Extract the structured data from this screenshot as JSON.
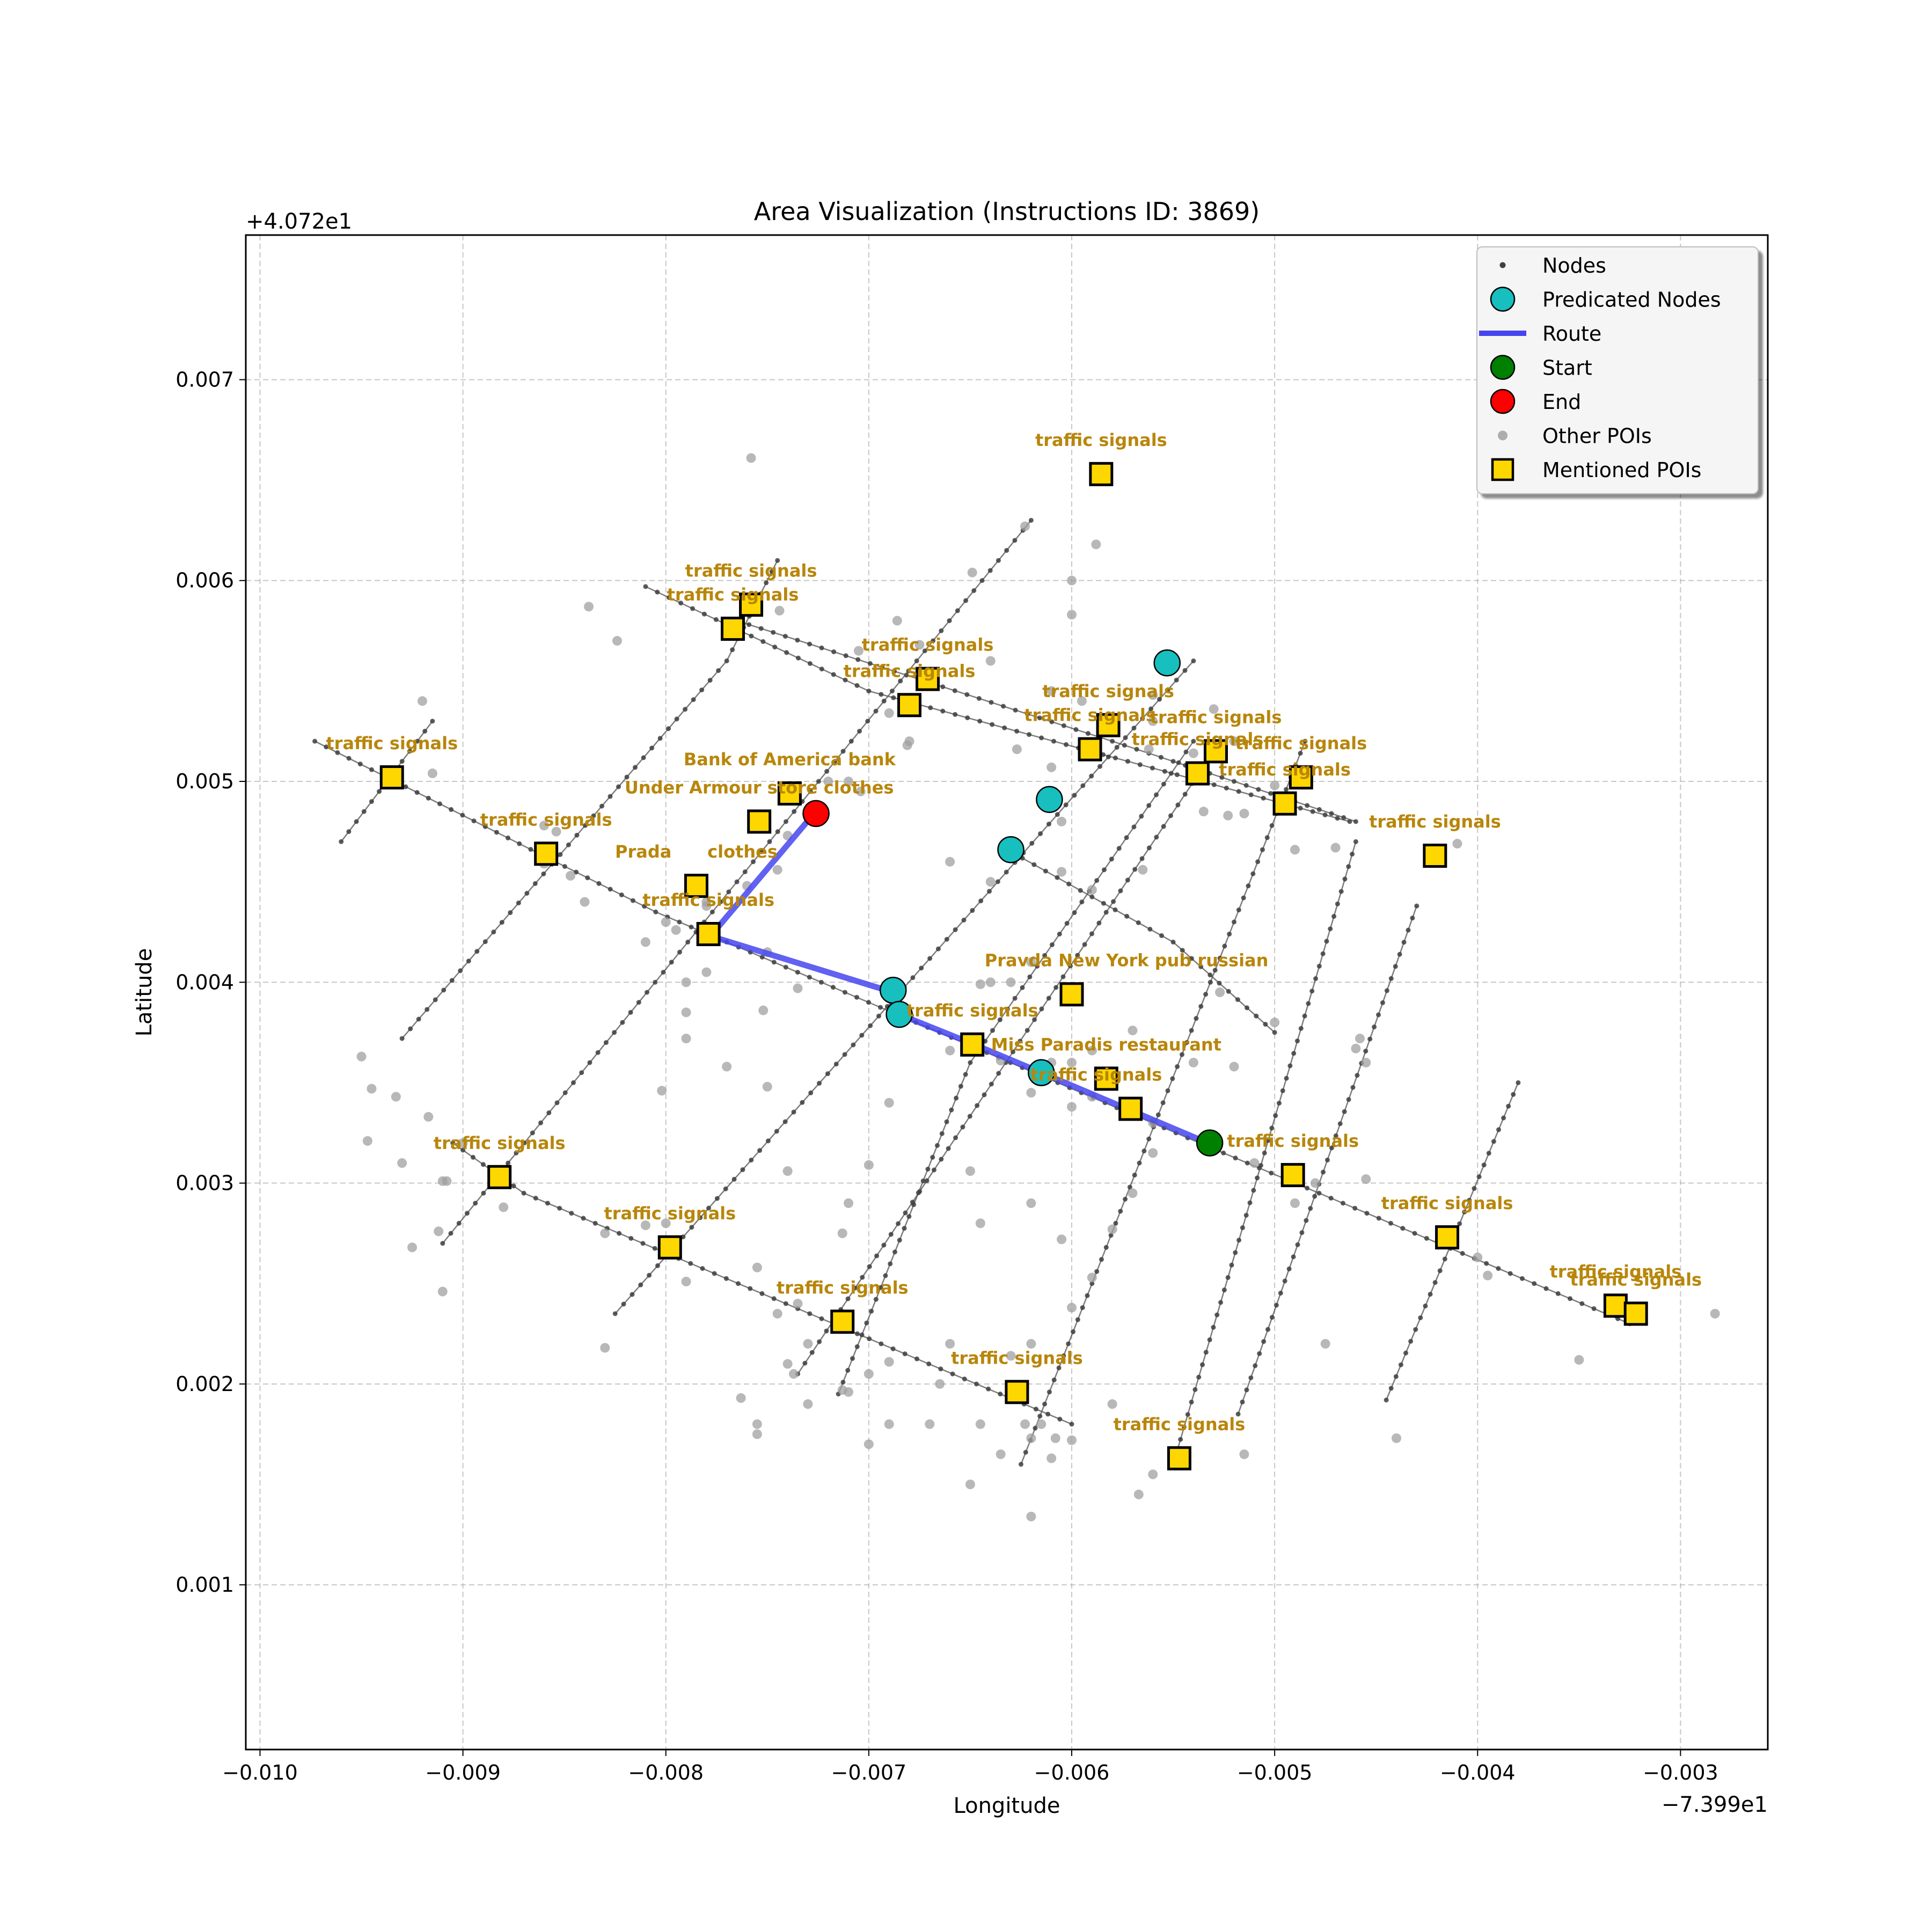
{
  "chart_data": {
    "type": "scatter",
    "title": "Area Visualization (Instructions ID: 3869)",
    "xlabel": "Longitude",
    "ylabel": "Latitude",
    "x_offset_label": "−7.399e1",
    "y_offset_label": "+4.072e1",
    "xlim": [
      -0.01007,
      -0.00257
    ],
    "ylim": [
      0.00018,
      0.00772
    ],
    "grid": true,
    "x_ticks": [
      {
        "v": -0.01,
        "label": "−0.010"
      },
      {
        "v": -0.009,
        "label": "−0.009"
      },
      {
        "v": -0.008,
        "label": "−0.008"
      },
      {
        "v": -0.007,
        "label": "−0.007"
      },
      {
        "v": -0.006,
        "label": "−0.006"
      },
      {
        "v": -0.005,
        "label": "−0.005"
      },
      {
        "v": -0.004,
        "label": "−0.004"
      },
      {
        "v": -0.003,
        "label": "−0.003"
      }
    ],
    "y_ticks": [
      {
        "v": 0.001,
        "label": "0.001"
      },
      {
        "v": 0.002,
        "label": "0.002"
      },
      {
        "v": 0.003,
        "label": "0.003"
      },
      {
        "v": 0.004,
        "label": "0.004"
      },
      {
        "v": 0.005,
        "label": "0.005"
      },
      {
        "v": 0.006,
        "label": "0.006"
      },
      {
        "v": 0.007,
        "label": "0.007"
      }
    ],
    "legend": {
      "position": "top-right",
      "entries": [
        {
          "label": "Nodes",
          "marker": "small-dot",
          "color": "#404040"
        },
        {
          "label": "Predicated Nodes",
          "marker": "circle",
          "color": "#17bfbf"
        },
        {
          "label": "Route",
          "marker": "line",
          "color": "#4545f0"
        },
        {
          "label": "Start",
          "marker": "circle",
          "color": "#008000"
        },
        {
          "label": "End",
          "marker": "circle",
          "color": "#ff0000"
        },
        {
          "label": "Other POIs",
          "marker": "gray-dot",
          "color": "#a0a0a0"
        },
        {
          "label": "Mentioned POIs",
          "marker": "square",
          "color": "#ffd700"
        }
      ]
    },
    "colors": {
      "node": "#404040",
      "edge": "#505050",
      "predicated": "#17bfbf",
      "route": "#4545f0",
      "start": "#008000",
      "end": "#ff0000",
      "other_poi": "#a0a0a0",
      "mentioned_poi": "#ffd700",
      "poi_label": "#b8860b"
    },
    "streets": [
      [
        [
          -0.00973,
          0.0052
        ],
        [
          -0.00805,
          0.00435
        ],
        [
          -0.0077,
          0.0042
        ],
        [
          -0.00537,
          0.0032
        ],
        [
          -0.00325,
          0.0023
        ]
      ],
      [
        [
          -0.0081,
          0.00597
        ],
        [
          -0.007,
          0.00545
        ],
        [
          -0.00463,
          0.0048
        ]
      ],
      [
        [
          -0.00765,
          0.0058
        ],
        [
          -0.0058,
          0.0052
        ],
        [
          -0.0046,
          0.0048
        ]
      ],
      [
        [
          -0.00905,
          0.0032
        ],
        [
          -0.0087,
          0.00295
        ],
        [
          -0.006,
          0.0018
        ]
      ],
      [
        [
          -0.0063,
          0.00465
        ],
        [
          -0.0055,
          0.0042
        ],
        [
          -0.005,
          0.00375
        ]
      ],
      [
        [
          -0.0096,
          0.0047
        ],
        [
          -0.00915,
          0.0053
        ]
      ],
      [
        [
          -0.0093,
          0.00372
        ],
        [
          -0.0077,
          0.0056
        ],
        [
          -0.00745,
          0.0061
        ]
      ],
      [
        [
          -0.0091,
          0.0027
        ],
        [
          -0.0062,
          0.0063
        ]
      ],
      [
        [
          -0.00825,
          0.00235
        ],
        [
          -0.0054,
          0.0056
        ]
      ],
      [
        [
          -0.00735,
          0.00205
        ],
        [
          -0.0053,
          0.00515
        ]
      ],
      [
        [
          -0.00715,
          0.00195
        ],
        [
          -0.0065,
          0.0036
        ],
        [
          -0.0054,
          0.0052
        ]
      ],
      [
        [
          -0.00625,
          0.0016
        ],
        [
          -0.00485,
          0.0052
        ]
      ],
      [
        [
          -0.0055,
          0.0016
        ],
        [
          -0.0046,
          0.0047
        ]
      ],
      [
        [
          -0.00518,
          0.00185
        ],
        [
          -0.0043,
          0.00438
        ]
      ],
      [
        [
          -0.00445,
          0.00192
        ],
        [
          -0.0038,
          0.0035
        ]
      ]
    ],
    "route": [
      [
        -0.00727,
        0.00484
      ],
      [
        -0.00778,
        0.00423
      ],
      [
        -0.00688,
        0.00395
      ],
      [
        -0.00685,
        0.00384
      ],
      [
        -0.00648,
        0.00369
      ],
      [
        -0.00615,
        0.00355
      ],
      [
        -0.00533,
        0.0032
      ]
    ],
    "predicated_nodes": [
      [
        -0.00553,
        0.00559
      ],
      [
        -0.00611,
        0.00491
      ],
      [
        -0.0063,
        0.00466
      ],
      [
        -0.00688,
        0.00396
      ],
      [
        -0.00685,
        0.00384
      ],
      [
        -0.00615,
        0.00355
      ]
    ],
    "start": [
      -0.00532,
      0.0032
    ],
    "end": [
      -0.00726,
      0.00484
    ],
    "other_pois": [
      [
        -0.00758,
        0.00661
      ],
      [
        -0.00588,
        0.00618
      ],
      [
        -0.006,
        0.006
      ],
      [
        -0.00623,
        0.00627
      ],
      [
        -0.00649,
        0.00604
      ],
      [
        -0.006,
        0.00583
      ],
      [
        -0.00838,
        0.00587
      ],
      [
        -0.00824,
        0.0057
      ],
      [
        -0.00744,
        0.00585
      ],
      [
        -0.00686,
        0.0058
      ],
      [
        -0.00705,
        0.00565
      ],
      [
        -0.00675,
        0.00568
      ],
      [
        -0.0064,
        0.0056
      ],
      [
        -0.00595,
        0.0054
      ],
      [
        -0.0056,
        0.0053
      ],
      [
        -0.0053,
        0.00536
      ],
      [
        -0.0052,
        0.0052
      ],
      [
        -0.0054,
        0.00514
      ],
      [
        -0.005,
        0.00498
      ],
      [
        -0.00515,
        0.00484
      ],
      [
        -0.00535,
        0.00485
      ],
      [
        -0.00523,
        0.00483
      ],
      [
        -0.0049,
        0.00466
      ],
      [
        -0.0047,
        0.00467
      ],
      [
        -0.0086,
        0.00478
      ],
      [
        -0.00854,
        0.00475
      ],
      [
        -0.0086,
        0.00459
      ],
      [
        -0.00847,
        0.00453
      ],
      [
        -0.0084,
        0.0044
      ],
      [
        -0.0092,
        0.0054
      ],
      [
        -0.00915,
        0.00504
      ],
      [
        -0.0095,
        0.00363
      ],
      [
        -0.00945,
        0.00347
      ],
      [
        -0.00933,
        0.00343
      ],
      [
        -0.00917,
        0.00333
      ],
      [
        -0.009,
        0.0032
      ],
      [
        -0.00947,
        0.00321
      ],
      [
        -0.0093,
        0.0031
      ],
      [
        -0.0091,
        0.00301
      ],
      [
        -0.00908,
        0.00301
      ],
      [
        -0.0088,
        0.00288
      ],
      [
        -0.00912,
        0.00276
      ],
      [
        -0.00925,
        0.00268
      ],
      [
        -0.0091,
        0.00246
      ],
      [
        -0.00802,
        0.00346
      ],
      [
        -0.0079,
        0.00372
      ],
      [
        -0.0077,
        0.00358
      ],
      [
        -0.0075,
        0.00348
      ],
      [
        -0.0078,
        0.00405
      ],
      [
        -0.0079,
        0.004
      ],
      [
        -0.0079,
        0.00385
      ],
      [
        -0.00752,
        0.00386
      ],
      [
        -0.0075,
        0.00415
      ],
      [
        -0.00735,
        0.00397
      ],
      [
        -0.0078,
        0.00438
      ],
      [
        -0.0076,
        0.00448
      ],
      [
        -0.00745,
        0.00456
      ],
      [
        -0.0074,
        0.00473
      ],
      [
        -0.00795,
        0.00426
      ],
      [
        -0.008,
        0.0043
      ],
      [
        -0.0081,
        0.0042
      ],
      [
        -0.0078,
        0.0044
      ],
      [
        -0.0072,
        0.005
      ],
      [
        -0.0071,
        0.005
      ],
      [
        -0.00704,
        0.00495
      ],
      [
        -0.0068,
        0.0052
      ],
      [
        -0.0069,
        0.00534
      ],
      [
        -0.00681,
        0.00518
      ],
      [
        -0.00627,
        0.00516
      ],
      [
        -0.0061,
        0.00545
      ],
      [
        -0.00562,
        0.00516
      ],
      [
        -0.0056,
        0.00543
      ],
      [
        -0.00588,
        0.00513
      ],
      [
        -0.0061,
        0.00507
      ],
      [
        -0.0061,
        0.0049
      ],
      [
        -0.00605,
        0.0048
      ],
      [
        -0.00605,
        0.00455
      ],
      [
        -0.0064,
        0.0045
      ],
      [
        -0.0066,
        0.0046
      ],
      [
        -0.0059,
        0.00446
      ],
      [
        -0.00565,
        0.00456
      ],
      [
        -0.0068,
        0.00383
      ],
      [
        -0.0066,
        0.00366
      ],
      [
        -0.00645,
        0.00399
      ],
      [
        -0.0064,
        0.004
      ],
      [
        -0.0063,
        0.004
      ],
      [
        -0.0062,
        0.0041
      ],
      [
        -0.00635,
        0.00361
      ],
      [
        -0.0061,
        0.0036
      ],
      [
        -0.006,
        0.0036
      ],
      [
        -0.0059,
        0.00366
      ],
      [
        -0.0062,
        0.00345
      ],
      [
        -0.006,
        0.00338
      ],
      [
        -0.0059,
        0.00343
      ],
      [
        -0.0057,
        0.00376
      ],
      [
        -0.0056,
        0.0033
      ],
      [
        -0.0054,
        0.0036
      ],
      [
        -0.0052,
        0.00358
      ],
      [
        -0.00527,
        0.00395
      ],
      [
        -0.005,
        0.0038
      ],
      [
        -0.0056,
        0.00315
      ],
      [
        -0.0057,
        0.00295
      ],
      [
        -0.0051,
        0.0031
      ],
      [
        -0.0049,
        0.0029
      ],
      [
        -0.0048,
        0.003
      ],
      [
        -0.00455,
        0.00302
      ],
      [
        -0.00455,
        0.0036
      ],
      [
        -0.0046,
        0.00367
      ],
      [
        -0.00458,
        0.00372
      ],
      [
        -0.004,
        0.00263
      ],
      [
        -0.00395,
        0.00254
      ],
      [
        -0.0035,
        0.00212
      ],
      [
        -0.00283,
        0.00235
      ],
      [
        -0.00475,
        0.0022
      ],
      [
        -0.0044,
        0.00173
      ],
      [
        -0.0042,
        0.0046
      ],
      [
        -0.0041,
        0.00469
      ],
      [
        -0.0069,
        0.0034
      ],
      [
        -0.007,
        0.00309
      ],
      [
        -0.0074,
        0.00306
      ],
      [
        -0.0065,
        0.00306
      ],
      [
        -0.0071,
        0.0029
      ],
      [
        -0.00713,
        0.00275
      ],
      [
        -0.00645,
        0.0028
      ],
      [
        -0.00605,
        0.00272
      ],
      [
        -0.0062,
        0.0029
      ],
      [
        -0.0058,
        0.00277
      ],
      [
        -0.0059,
        0.00253
      ],
      [
        -0.006,
        0.00238
      ],
      [
        -0.0062,
        0.0022
      ],
      [
        -0.0063,
        0.00214
      ],
      [
        -0.0066,
        0.0022
      ],
      [
        -0.0069,
        0.00211
      ],
      [
        -0.007,
        0.00205
      ],
      [
        -0.00665,
        0.002
      ],
      [
        -0.0069,
        0.0018
      ],
      [
        -0.0071,
        0.00196
      ],
      [
        -0.00713,
        0.00197
      ],
      [
        -0.0073,
        0.0022
      ],
      [
        -0.0074,
        0.0021
      ],
      [
        -0.00737,
        0.00205
      ],
      [
        -0.00735,
        0.0024
      ],
      [
        -0.00745,
        0.00235
      ],
      [
        -0.00755,
        0.00258
      ],
      [
        -0.00763,
        0.00193
      ],
      [
        -0.00755,
        0.0018
      ],
      [
        -0.00755,
        0.00175
      ],
      [
        -0.0073,
        0.0019
      ],
      [
        -0.007,
        0.0017
      ],
      [
        -0.0067,
        0.0018
      ],
      [
        -0.00615,
        0.0018
      ],
      [
        -0.00608,
        0.00173
      ],
      [
        -0.00623,
        0.0018
      ],
      [
        -0.00645,
        0.0018
      ],
      [
        -0.0065,
        0.0015
      ],
      [
        -0.00635,
        0.00165
      ],
      [
        -0.0062,
        0.00173
      ],
      [
        -0.0061,
        0.00163
      ],
      [
        -0.006,
        0.00172
      ],
      [
        -0.0062,
        0.00134
      ],
      [
        -0.0058,
        0.0019
      ],
      [
        -0.00567,
        0.00145
      ],
      [
        -0.0056,
        0.00155
      ],
      [
        -0.00515,
        0.00165
      ],
      [
        -0.0083,
        0.00218
      ],
      [
        -0.0079,
        0.00251
      ],
      [
        -0.008,
        0.00265
      ],
      [
        -0.0081,
        0.00279
      ],
      [
        -0.0083,
        0.00275
      ],
      [
        -0.008,
        0.0028
      ]
    ],
    "mentioned_pois": [
      {
        "x": -0.005855,
        "y": 0.00653,
        "label": "traffic signals",
        "lx": -0.005855,
        "ly": 0.00667
      },
      {
        "x": -0.00758,
        "y": 0.00588,
        "label": "traffic signals",
        "lx": -0.00758,
        "ly": 0.00602
      },
      {
        "x": -0.00767,
        "y": 0.00576,
        "label": "traffic signals",
        "lx": -0.00767,
        "ly": 0.0059
      },
      {
        "x": -0.00671,
        "y": 0.00551,
        "label": "traffic signals",
        "lx": -0.00671,
        "ly": 0.00565
      },
      {
        "x": -0.0068,
        "y": 0.00538,
        "label": "traffic signals",
        "lx": -0.0068,
        "ly": 0.00552
      },
      {
        "x": -0.00582,
        "y": 0.00528,
        "label": "traffic signals",
        "lx": -0.00582,
        "ly": 0.00542
      },
      {
        "x": -0.00591,
        "y": 0.00516,
        "label": "traffic signals",
        "lx": -0.00591,
        "ly": 0.0053
      },
      {
        "x": -0.00529,
        "y": 0.00515,
        "label": "traffic signals",
        "lx": -0.00529,
        "ly": 0.00529
      },
      {
        "x": -0.00538,
        "y": 0.00504,
        "label": "traffic signals",
        "lx": -0.00538,
        "ly": 0.00518
      },
      {
        "x": -0.00487,
        "y": 0.00502,
        "label": "traffic signals",
        "lx": -0.00487,
        "ly": 0.00516
      },
      {
        "x": -0.00495,
        "y": 0.00489,
        "label": "traffic signals",
        "lx": -0.00495,
        "ly": 0.00503
      },
      {
        "x": -0.00935,
        "y": 0.00502,
        "label": "traffic signals",
        "lx": -0.00935,
        "ly": 0.00516
      },
      {
        "x": -0.00859,
        "y": 0.00464,
        "label": "traffic signals",
        "lx": -0.00859,
        "ly": 0.00478
      },
      {
        "x": -0.00421,
        "y": 0.00463,
        "label": "traffic signals",
        "lx": -0.00421,
        "ly": 0.00477
      },
      {
        "x": -0.00739,
        "y": 0.00494,
        "label": "Bank of America bank",
        "lx": -0.00739,
        "ly": 0.00508
      },
      {
        "x": -0.00754,
        "y": 0.0048,
        "label": "Under Armour store clothes",
        "lx": -0.00754,
        "ly": 0.00494
      },
      {
        "x": -0.00785,
        "y": 0.00448,
        "label": "Prada      clothes",
        "lx": -0.00785,
        "ly": 0.00462
      },
      {
        "x": -0.00779,
        "y": 0.00424,
        "label": "traffic signals",
        "lx": -0.00779,
        "ly": 0.00438
      },
      {
        "x": -0.006,
        "y": 0.00394,
        "label": "Pravda New York pub russian",
        "lx": -0.00573,
        "ly": 0.00408
      },
      {
        "x": -0.00649,
        "y": 0.00369,
        "label": "traffic signals",
        "lx": -0.00649,
        "ly": 0.00383
      },
      {
        "x": -0.00583,
        "y": 0.00352,
        "label": "Miss Paradis restaurant",
        "lx": -0.00583,
        "ly": 0.00366
      },
      {
        "x": -0.00571,
        "y": 0.00337,
        "label": "traffic signals",
        "lx": -0.00588,
        "ly": 0.00351
      },
      {
        "x": -0.00491,
        "y": 0.00304,
        "label": "traffic signals",
        "lx": -0.00491,
        "ly": 0.00318
      },
      {
        "x": -0.00882,
        "y": 0.00303,
        "label": "traffic signals",
        "lx": -0.00882,
        "ly": 0.00317
      },
      {
        "x": -0.00798,
        "y": 0.00268,
        "label": "traffic signals",
        "lx": -0.00798,
        "ly": 0.00282
      },
      {
        "x": -0.00415,
        "y": 0.00273,
        "label": "traffic signals",
        "lx": -0.00415,
        "ly": 0.00287
      },
      {
        "x": -0.00713,
        "y": 0.00231,
        "label": "traffic signals",
        "lx": -0.00713,
        "ly": 0.00245
      },
      {
        "x": -0.00332,
        "y": 0.00239,
        "label": "traffic signals",
        "lx": -0.00332,
        "ly": 0.00253
      },
      {
        "x": -0.00322,
        "y": 0.00235,
        "label": "traffic signals",
        "lx": -0.00322,
        "ly": 0.00249
      },
      {
        "x": -0.00627,
        "y": 0.00196,
        "label": "traffic signals",
        "lx": -0.00627,
        "ly": 0.0021
      },
      {
        "x": -0.00547,
        "y": 0.00163,
        "label": "traffic signals",
        "lx": -0.00547,
        "ly": 0.00177
      }
    ]
  }
}
